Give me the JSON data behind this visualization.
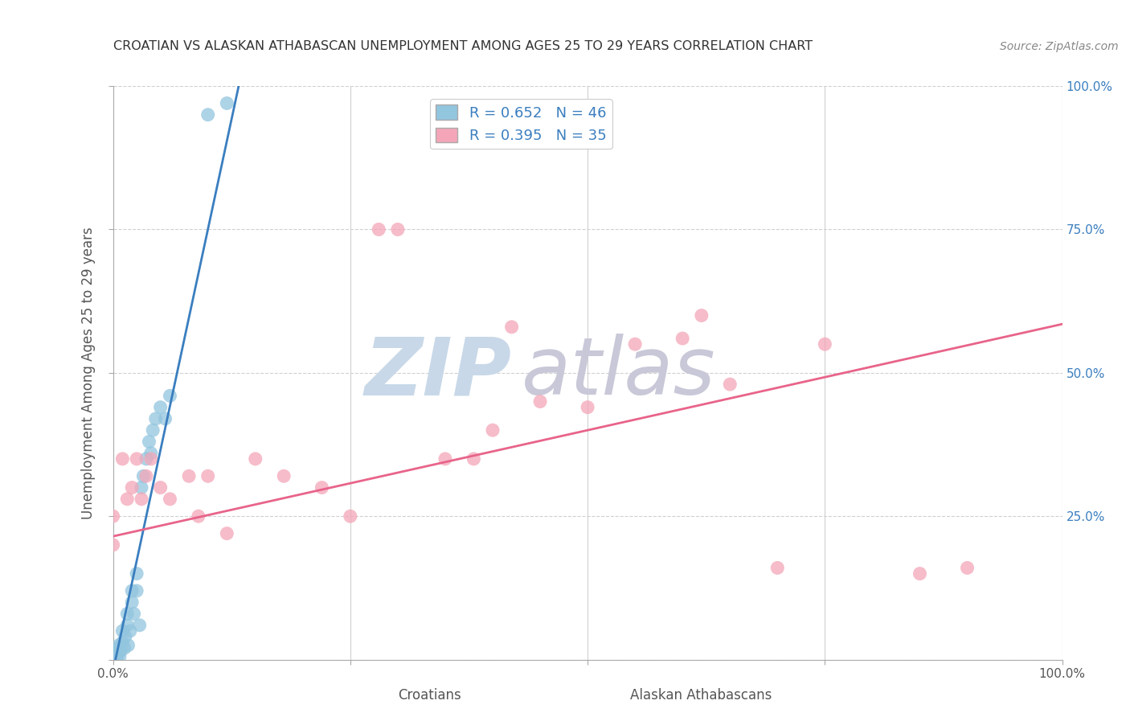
{
  "title": "CROATIAN VS ALASKAN ATHABASCAN UNEMPLOYMENT AMONG AGES 25 TO 29 YEARS CORRELATION CHART",
  "source": "Source: ZipAtlas.com",
  "ylabel": "Unemployment Among Ages 25 to 29 years",
  "xlabel_left": "Croatians",
  "xlabel_right": "Alaskan Athabascans",
  "xlim": [
    0,
    1.0
  ],
  "ylim": [
    0,
    1.0
  ],
  "xticks": [
    0,
    0.25,
    0.5,
    0.75,
    1.0
  ],
  "xticklabels": [
    "0.0%",
    "",
    "",
    "",
    "100.0%"
  ],
  "yticks": [
    0.0,
    0.25,
    0.5,
    0.75,
    1.0
  ],
  "ylabels_left": [
    "",
    "",
    "",
    "",
    ""
  ],
  "ylabels_right": [
    "",
    "25.0%",
    "50.0%",
    "75.0%",
    "100.0%"
  ],
  "legend_r1": "R = 0.652",
  "legend_n1": "N = 46",
  "legend_r2": "R = 0.395",
  "legend_n2": "N = 35",
  "blue_color": "#92c5de",
  "pink_color": "#f4a6b8",
  "line_blue": "#3a7ebf",
  "line_pink": "#e8648a",
  "text_blue": "#3a7ebf",
  "croatian_x": [
    0.0,
    0.0,
    0.0,
    0.0,
    0.0,
    0.0,
    0.0,
    0.0,
    0.0,
    0.0,
    0.0,
    0.0,
    0.002,
    0.003,
    0.004,
    0.005,
    0.005,
    0.006,
    0.007,
    0.008,
    0.01,
    0.01,
    0.012,
    0.013,
    0.015,
    0.015,
    0.016,
    0.018,
    0.02,
    0.02,
    0.022,
    0.025,
    0.025,
    0.028,
    0.03,
    0.032,
    0.035,
    0.038,
    0.04,
    0.042,
    0.045,
    0.05,
    0.055,
    0.06,
    0.1,
    0.12
  ],
  "croatian_y": [
    0.0,
    0.0,
    0.0,
    0.0,
    0.0,
    0.0,
    0.002,
    0.004,
    0.005,
    0.006,
    0.008,
    0.01,
    0.0,
    0.0,
    0.005,
    0.01,
    0.02,
    0.025,
    0.005,
    0.015,
    0.03,
    0.05,
    0.02,
    0.04,
    0.06,
    0.08,
    0.025,
    0.05,
    0.1,
    0.12,
    0.08,
    0.12,
    0.15,
    0.06,
    0.3,
    0.32,
    0.35,
    0.38,
    0.36,
    0.4,
    0.42,
    0.44,
    0.42,
    0.46,
    0.95,
    0.97
  ],
  "athabascan_x": [
    0.0,
    0.0,
    0.01,
    0.015,
    0.02,
    0.025,
    0.03,
    0.035,
    0.04,
    0.05,
    0.06,
    0.08,
    0.09,
    0.1,
    0.12,
    0.15,
    0.18,
    0.22,
    0.25,
    0.28,
    0.3,
    0.35,
    0.38,
    0.4,
    0.42,
    0.45,
    0.5,
    0.55,
    0.6,
    0.62,
    0.65,
    0.7,
    0.75,
    0.85,
    0.9
  ],
  "athabascan_y": [
    0.2,
    0.25,
    0.35,
    0.28,
    0.3,
    0.35,
    0.28,
    0.32,
    0.35,
    0.3,
    0.28,
    0.32,
    0.25,
    0.32,
    0.22,
    0.35,
    0.32,
    0.3,
    0.25,
    0.75,
    0.75,
    0.35,
    0.35,
    0.4,
    0.58,
    0.45,
    0.44,
    0.55,
    0.56,
    0.6,
    0.48,
    0.16,
    0.55,
    0.15,
    0.16
  ],
  "blue_line_x": [
    0.0,
    0.135
  ],
  "blue_line_y": [
    -0.02,
    1.02
  ],
  "pink_line_x": [
    0.0,
    1.0
  ],
  "pink_line_y": [
    0.215,
    0.585
  ],
  "grid_color": "#d0d0d0",
  "watermark_zip_color": "#c8d8e8",
  "watermark_atlas_color": "#c8c8d8"
}
